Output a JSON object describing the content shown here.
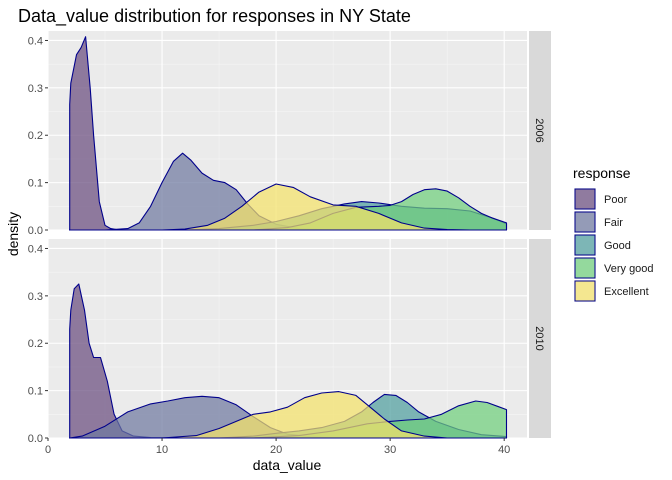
{
  "chart_data": {
    "type": "area",
    "title": "Data_value distribution for responses in NY State",
    "xlabel": "data_value",
    "ylabel": "density",
    "xlim": [
      0,
      42
    ],
    "ylim": [
      0,
      0.42
    ],
    "x_ticks": [
      0,
      10,
      20,
      30,
      40
    ],
    "y_ticks": [
      0.0,
      0.1,
      0.2,
      0.3,
      0.4
    ],
    "x_tick_labels": [
      "0",
      "10",
      "20",
      "30",
      "40"
    ],
    "y_tick_labels": [
      "0.0",
      "0.1",
      "0.2",
      "0.3",
      "0.4"
    ],
    "legend_title": "response",
    "legend_position": "right",
    "outline_color": "#00008b",
    "categories": [
      "Poor",
      "Fair",
      "Good",
      "Very good",
      "Excellent"
    ],
    "colors": [
      "#6a4c7e",
      "#6f789f",
      "#4f9e9e",
      "#6fcf7b",
      "#f4e26a"
    ],
    "panels": [
      {
        "label": "2006",
        "series": [
          {
            "name": "Poor",
            "x": [
              1.9,
              2.0,
              2.5,
              2.9,
              3.3,
              3.7,
              4.0,
              4.5,
              5.0,
              5.5,
              6.0,
              7.0,
              8.0,
              10.0,
              15.0,
              20.0,
              30.0,
              40.0,
              40.2
            ],
            "values": [
              0.265,
              0.31,
              0.37,
              0.385,
              0.408,
              0.3,
              0.2,
              0.06,
              0.01,
              0.003,
              0.001,
              0.0005,
              0.0,
              0.0,
              0.0,
              0.0,
              0.0,
              0.0,
              0.0
            ]
          },
          {
            "name": "Fair",
            "x": [
              1.9,
              5.0,
              7.0,
              8.0,
              9.0,
              10.0,
              11.0,
              11.8,
              12.5,
              13.5,
              14.5,
              15.5,
              16.5,
              17.5,
              18.5,
              20.0,
              22.0,
              25.0,
              30.0,
              35.0,
              40.2
            ],
            "values": [
              0.0,
              0.0,
              0.003,
              0.015,
              0.05,
              0.1,
              0.145,
              0.162,
              0.148,
              0.12,
              0.105,
              0.1,
              0.085,
              0.055,
              0.03,
              0.012,
              0.003,
              0.0,
              0.0,
              0.0,
              0.0
            ]
          },
          {
            "name": "Good",
            "x": [
              1.9,
              12.0,
              15.0,
              18.0,
              20.0,
              22.0,
              24.0,
              26.0,
              27.5,
              29.0,
              31.0,
              33.0,
              35.0,
              37.0,
              39.0,
              40.2
            ],
            "values": [
              0.0,
              0.0,
              0.003,
              0.01,
              0.018,
              0.03,
              0.045,
              0.055,
              0.06,
              0.057,
              0.05,
              0.046,
              0.045,
              0.04,
              0.025,
              0.013
            ]
          },
          {
            "name": "Very good",
            "x": [
              1.9,
              18.0,
              21.0,
              23.0,
              25.0,
              27.0,
              29.0,
              30.0,
              31.0,
              32.0,
              33.0,
              34.0,
              35.0,
              36.0,
              37.0,
              38.0,
              39.0,
              40.2
            ],
            "values": [
              0.0,
              0.0,
              0.005,
              0.015,
              0.035,
              0.048,
              0.05,
              0.052,
              0.06,
              0.075,
              0.085,
              0.087,
              0.082,
              0.068,
              0.05,
              0.035,
              0.025,
              0.015
            ]
          },
          {
            "name": "Excellent",
            "x": [
              1.9,
              10.0,
              12.0,
              14.0,
              15.5,
              17.0,
              18.5,
              20.0,
              21.5,
              23.0,
              25.0,
              27.0,
              29.0,
              31.0,
              33.0,
              35.0,
              37.0,
              40.2
            ],
            "values": [
              0.0,
              0.0,
              0.002,
              0.01,
              0.025,
              0.05,
              0.08,
              0.097,
              0.09,
              0.07,
              0.053,
              0.05,
              0.035,
              0.015,
              0.004,
              0.001,
              0.0,
              0.0
            ]
          }
        ]
      },
      {
        "label": "2010",
        "series": [
          {
            "name": "Poor",
            "x": [
              1.9,
              2.0,
              2.3,
              2.7,
              3.2,
              3.6,
              4.0,
              4.6,
              5.2,
              5.8,
              6.5,
              7.5,
              9.0,
              12.0,
              15.0,
              20.0,
              30.0,
              40.0,
              40.2
            ],
            "values": [
              0.23,
              0.27,
              0.315,
              0.325,
              0.27,
              0.2,
              0.17,
              0.17,
              0.12,
              0.05,
              0.015,
              0.004,
              0.001,
              0.0,
              0.0,
              0.0,
              0.0,
              0.0,
              0.0
            ]
          },
          {
            "name": "Fair",
            "x": [
              1.9,
              3.0,
              5.0,
              7.0,
              9.0,
              10.5,
              12.0,
              13.5,
              15.0,
              16.5,
              18.0,
              19.5,
              21.0,
              23.0,
              25.0,
              30.0,
              40.2
            ],
            "values": [
              0.0,
              0.004,
              0.025,
              0.055,
              0.072,
              0.078,
              0.085,
              0.088,
              0.085,
              0.07,
              0.045,
              0.022,
              0.008,
              0.003,
              0.0,
              0.0,
              0.0
            ]
          },
          {
            "name": "Good",
            "x": [
              1.9,
              15.0,
              18.0,
              20.0,
              22.0,
              24.0,
              26.0,
              27.5,
              28.5,
              29.5,
              30.5,
              31.5,
              32.5,
              34.0,
              36.0,
              38.0,
              40.2
            ],
            "values": [
              0.0,
              0.0,
              0.004,
              0.01,
              0.015,
              0.022,
              0.035,
              0.055,
              0.075,
              0.092,
              0.09,
              0.075,
              0.055,
              0.035,
              0.018,
              0.007,
              0.003
            ]
          },
          {
            "name": "Very good",
            "x": [
              1.9,
              18.0,
              22.0,
              25.0,
              28.0,
              30.0,
              31.5,
              33.0,
              34.5,
              36.0,
              37.5,
              38.5,
              39.5,
              40.2
            ],
            "values": [
              0.0,
              0.0,
              0.005,
              0.015,
              0.03,
              0.035,
              0.038,
              0.04,
              0.05,
              0.068,
              0.078,
              0.075,
              0.066,
              0.06
            ]
          },
          {
            "name": "Excellent",
            "x": [
              1.9,
              10.0,
              13.0,
              15.0,
              16.5,
              18.0,
              19.5,
              21.0,
              22.5,
              24.0,
              25.5,
              27.0,
              28.0,
              29.5,
              31.0,
              33.0,
              35.0,
              40.2
            ],
            "values": [
              0.0,
              0.0,
              0.005,
              0.02,
              0.035,
              0.05,
              0.055,
              0.065,
              0.085,
              0.095,
              0.098,
              0.09,
              0.07,
              0.04,
              0.015,
              0.004,
              0.0,
              0.0
            ]
          }
        ]
      }
    ]
  }
}
